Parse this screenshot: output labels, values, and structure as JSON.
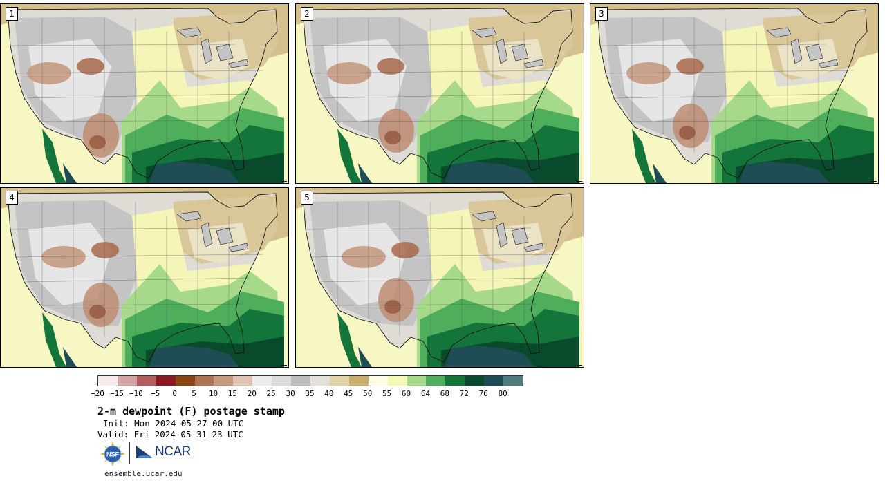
{
  "panels": [
    {
      "label": "1"
    },
    {
      "label": "2"
    },
    {
      "label": "3"
    },
    {
      "label": "4"
    },
    {
      "label": "5"
    }
  ],
  "colorbar": {
    "colors": [
      "#f6ecec",
      "#d4a3a6",
      "#b25d60",
      "#8b1a22",
      "#8b4513",
      "#ad7353",
      "#c6997d",
      "#dfc4b3",
      "#ececec",
      "#dcdcdc",
      "#bdbdbd",
      "#e2e0d8",
      "#e0d3a8",
      "#c9ae6d",
      "#fdfde6",
      "#f6f8b6",
      "#a6da8a",
      "#4fae5b",
      "#137539",
      "#0a4a2c",
      "#1f4d55",
      "#4e7c7f"
    ],
    "tick_labels": [
      "−20",
      "−15",
      "−10",
      "−5",
      "0",
      "5",
      "10",
      "15",
      "20",
      "25",
      "30",
      "35",
      "40",
      "45",
      "50",
      "55",
      "60",
      "64",
      "68",
      "72",
      "76",
      "80"
    ]
  },
  "title": "2-m dewpoint (F) postage stamp",
  "init": "Init: Mon 2024-05-27 00 UTC",
  "valid": "Valid: Fri 2024-05-31 23 UTC",
  "logos": {
    "nsf_text": "NSF",
    "ncar_text": "NCAR"
  },
  "site": "ensemble.ucar.edu"
}
